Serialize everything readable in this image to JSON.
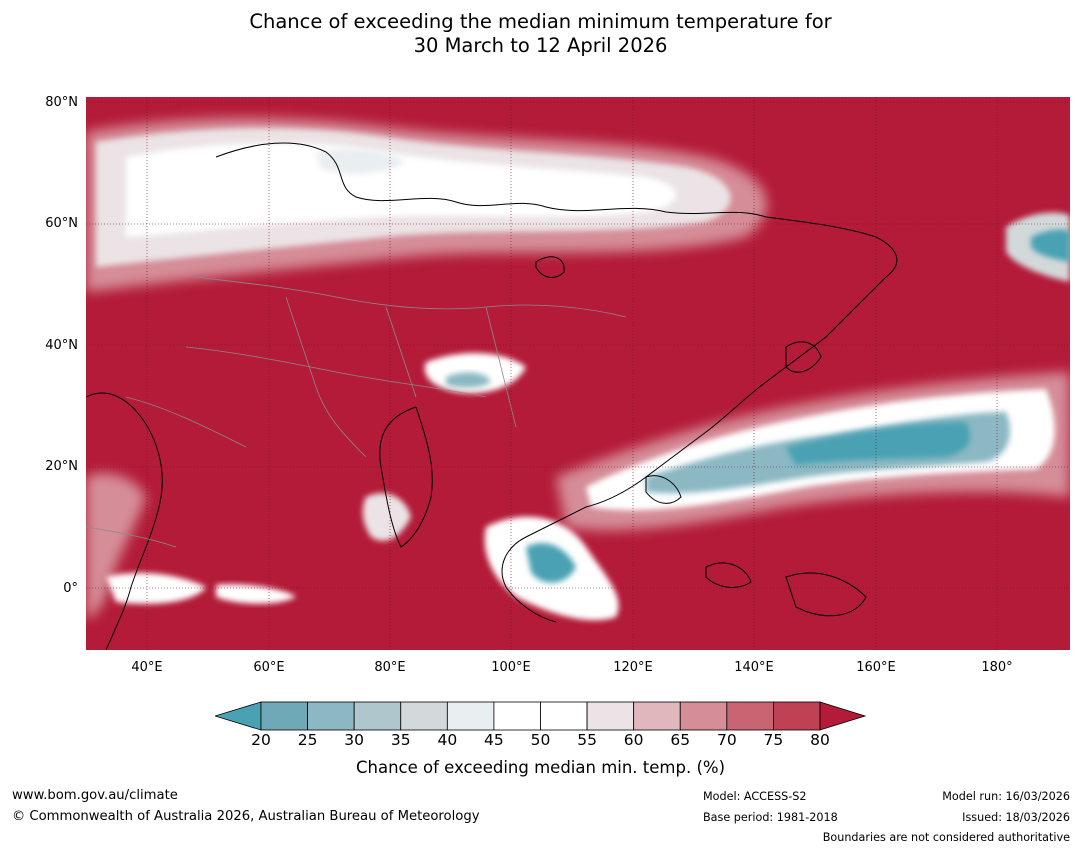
{
  "title": {
    "line1": "Chance of exceeding the median minimum temperature for",
    "line2": "30 March to 12 April 2026"
  },
  "axes": {
    "lat_labels": [
      "80°N",
      "60°N",
      "40°N",
      "20°N",
      "0°"
    ],
    "lon_labels": [
      "40°E",
      "60°E",
      "80°E",
      "100°E",
      "120°E",
      "140°E",
      "160°E",
      "180°"
    ],
    "lat_range": [
      -10,
      80
    ],
    "lon_range": [
      30,
      192
    ]
  },
  "colorbar": {
    "ticks": [
      "20",
      "25",
      "30",
      "35",
      "40",
      "45",
      "50",
      "55",
      "60",
      "65",
      "70",
      "75",
      "80"
    ],
    "colors": [
      "#4aa1b3",
      "#6fa8b6",
      "#8bb8c3",
      "#aec6cc",
      "#d3d9da",
      "#e9eef0",
      "#ffffff",
      "#ffffff",
      "#ebe3e5",
      "#e0b7bd",
      "#d58d98",
      "#c96573",
      "#bf4153",
      "#b31b38"
    ],
    "label": "Chance of exceeding median min. temp. (%)"
  },
  "footer": {
    "website": "www.bom.gov.au/climate",
    "copyright": "© Commonwealth of Australia 2026, Australian Bureau of Meteorology",
    "model": "Model: ACCESS-S2",
    "base_period": "Base period: 1981-2018",
    "model_run": "Model run: 16/03/2026",
    "issued": "Issued: 18/03/2026",
    "disclaimer": "Boundaries are not considered authoritative"
  }
}
